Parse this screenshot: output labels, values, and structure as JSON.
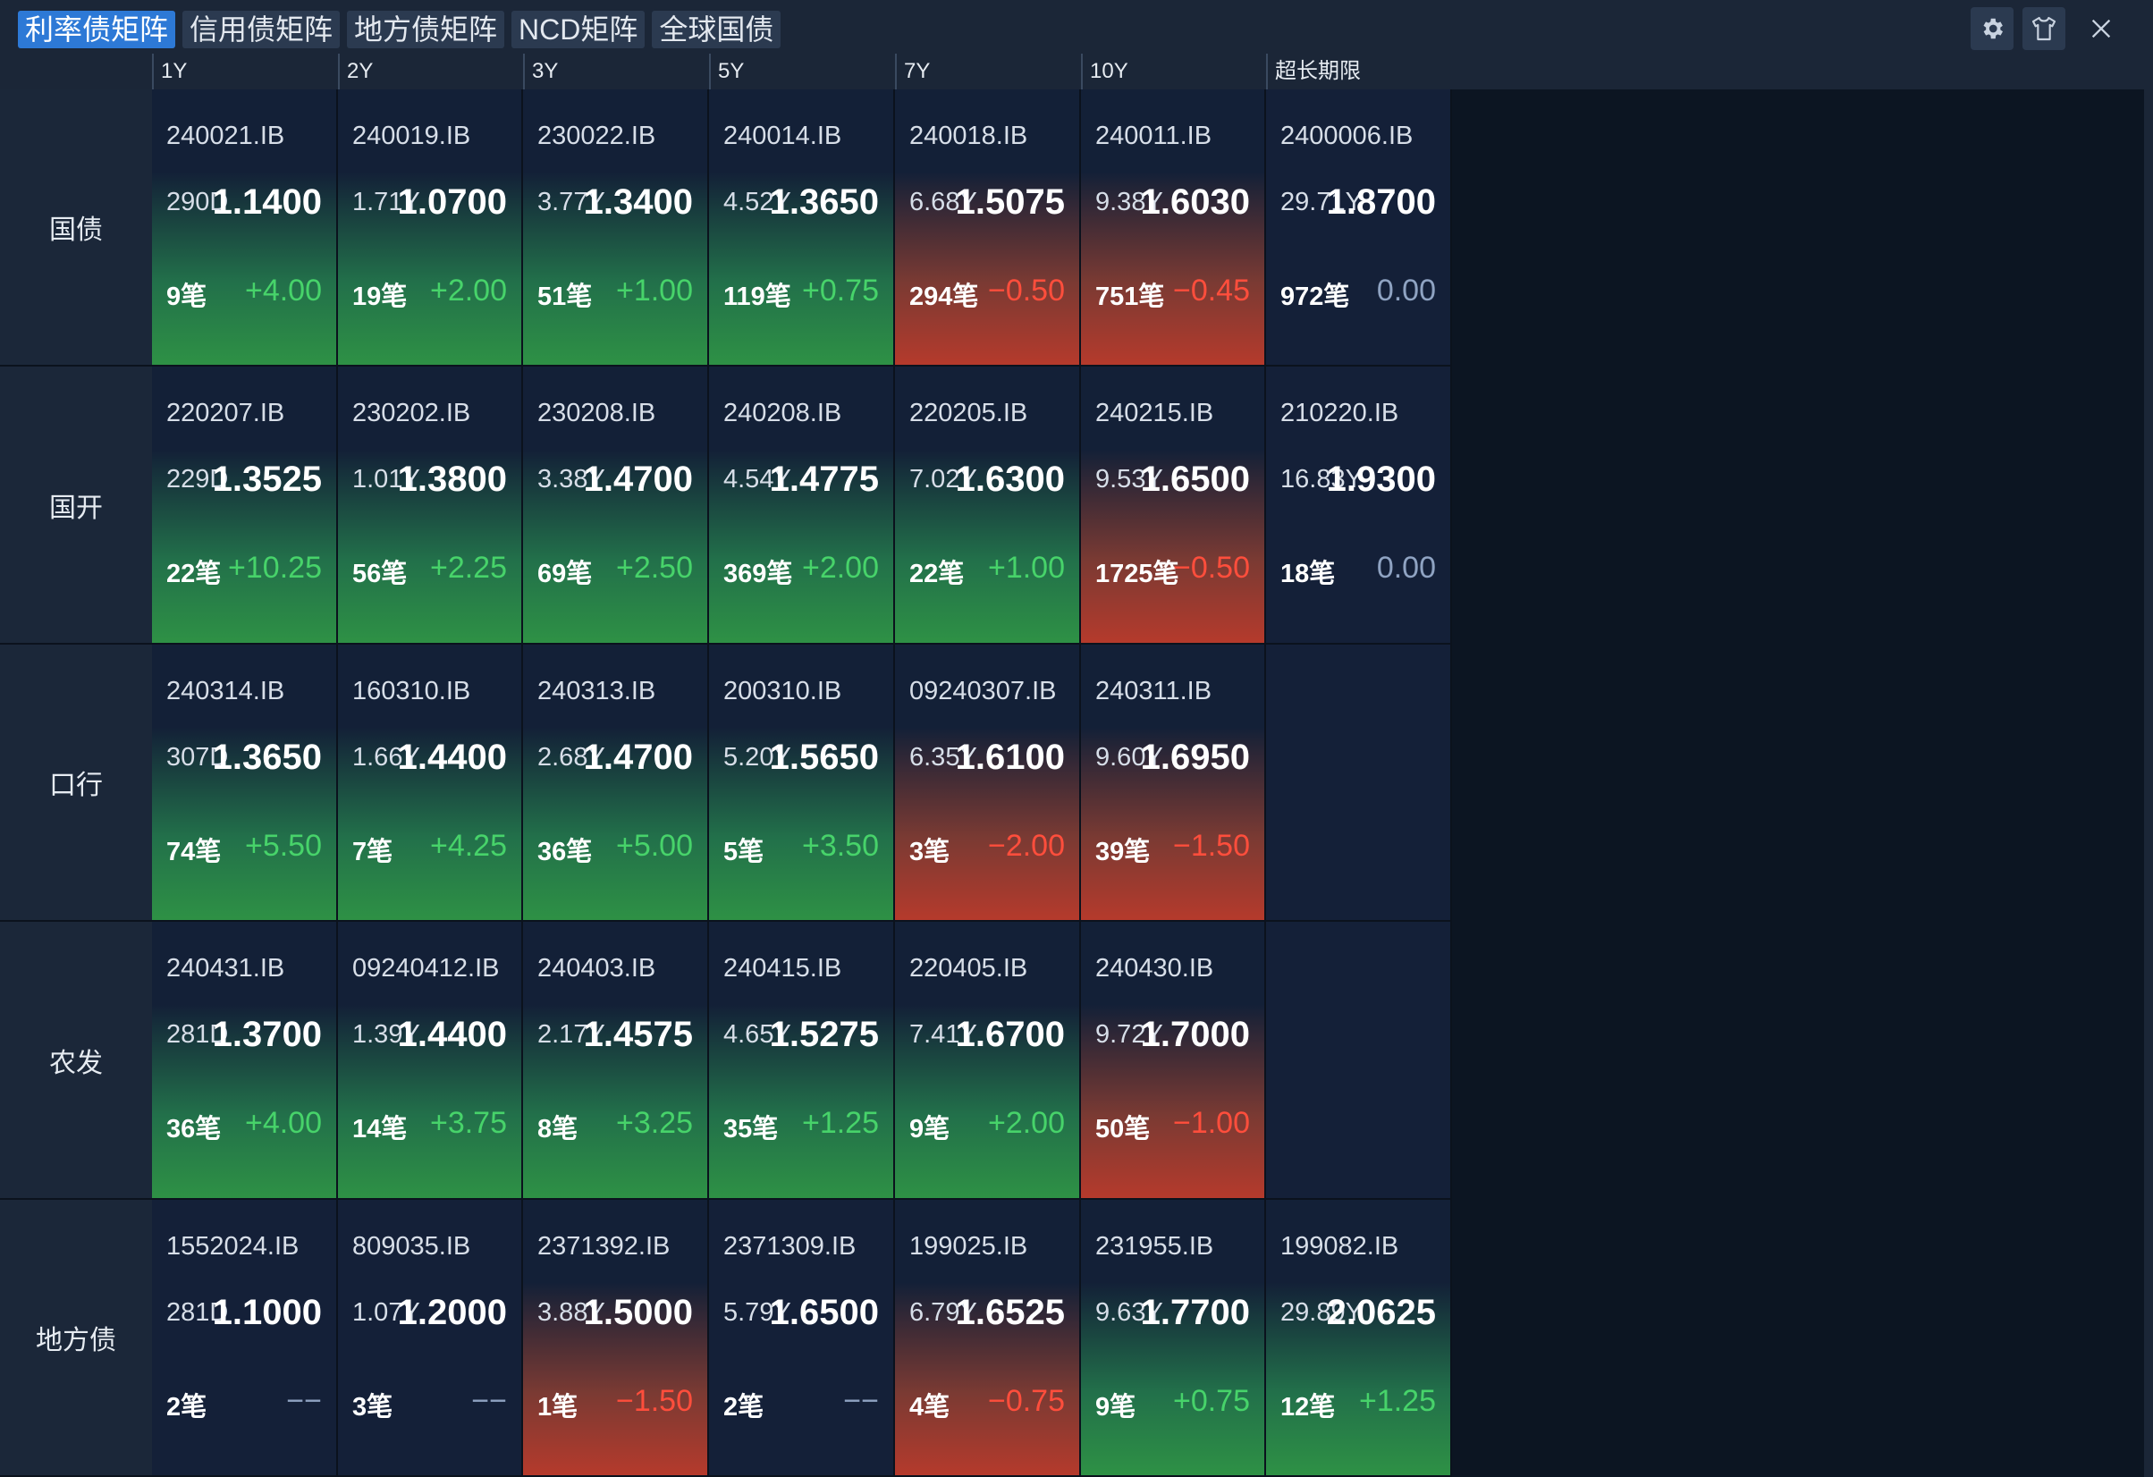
{
  "tabs": [
    {
      "label": "利率债矩阵",
      "active": true
    },
    {
      "label": "信用债矩阵",
      "active": false
    },
    {
      "label": "地方债矩阵",
      "active": false
    },
    {
      "label": "NCD矩阵",
      "active": false
    },
    {
      "label": "全球国债",
      "active": false
    }
  ],
  "controls": {
    "settings_icon": "gear-icon",
    "skin_icon": "shirt-icon",
    "close_icon": "close-icon"
  },
  "columns": [
    "1Y",
    "2Y",
    "3Y",
    "5Y",
    "7Y",
    "10Y",
    "超长期限"
  ],
  "colors": {
    "up": "#47d36a",
    "down": "#ff4e3c",
    "flat": "#8fa3c2",
    "active_tab": "#2d79d6"
  },
  "rows": [
    {
      "label": "国债",
      "cells": [
        {
          "code": "240021.IB",
          "term": "290D",
          "yield": "1.1400",
          "count": "9笔",
          "change": "+4.00",
          "trend": "up"
        },
        {
          "code": "240019.IB",
          "term": "1.71Y",
          "yield": "1.0700",
          "count": "19笔",
          "change": "+2.00",
          "trend": "up"
        },
        {
          "code": "230022.IB",
          "term": "3.77Y",
          "yield": "1.3400",
          "count": "51笔",
          "change": "+1.00",
          "trend": "up"
        },
        {
          "code": "240014.IB",
          "term": "4.52Y",
          "yield": "1.3650",
          "count": "119笔",
          "change": "+0.75",
          "trend": "up"
        },
        {
          "code": "240018.IB",
          "term": "6.68Y",
          "yield": "1.5075",
          "count": "294笔",
          "change": "−0.50",
          "trend": "down"
        },
        {
          "code": "240011.IB",
          "term": "9.38Y",
          "yield": "1.6030",
          "count": "751笔",
          "change": "−0.45",
          "trend": "down"
        },
        {
          "code": "2400006.IB",
          "term": "29.71Y",
          "yield": "1.8700",
          "count": "972笔",
          "change": "0.00",
          "trend": "flat"
        }
      ]
    },
    {
      "label": "国开",
      "cells": [
        {
          "code": "220207.IB",
          "term": "229D",
          "yield": "1.3525",
          "count": "22笔",
          "change": "+10.25",
          "trend": "up"
        },
        {
          "code": "230202.IB",
          "term": "1.01Y",
          "yield": "1.3800",
          "count": "56笔",
          "change": "+2.25",
          "trend": "up"
        },
        {
          "code": "230208.IB",
          "term": "3.38Y",
          "yield": "1.4700",
          "count": "69笔",
          "change": "+2.50",
          "trend": "up"
        },
        {
          "code": "240208.IB",
          "term": "4.54Y",
          "yield": "1.4775",
          "count": "369笔",
          "change": "+2.00",
          "trend": "up"
        },
        {
          "code": "220205.IB",
          "term": "7.02Y",
          "yield": "1.6300",
          "count": "22笔",
          "change": "+1.00",
          "trend": "up"
        },
        {
          "code": "240215.IB",
          "term": "9.53Y",
          "yield": "1.6500",
          "count": "1725笔",
          "change": "−0.50",
          "trend": "down"
        },
        {
          "code": "210220.IB",
          "term": "16.83Y",
          "yield": "1.9300",
          "count": "18笔",
          "change": "0.00",
          "trend": "flat"
        }
      ]
    },
    {
      "label": "口行",
      "cells": [
        {
          "code": "240314.IB",
          "term": "307D",
          "yield": "1.3650",
          "count": "74笔",
          "change": "+5.50",
          "trend": "up"
        },
        {
          "code": "160310.IB",
          "term": "1.66Y",
          "yield": "1.4400",
          "count": "7笔",
          "change": "+4.25",
          "trend": "up"
        },
        {
          "code": "240313.IB",
          "term": "2.68Y",
          "yield": "1.4700",
          "count": "36笔",
          "change": "+5.00",
          "trend": "up"
        },
        {
          "code": "200310.IB",
          "term": "5.20Y",
          "yield": "1.5650",
          "count": "5笔",
          "change": "+3.50",
          "trend": "up"
        },
        {
          "code": "09240307.IB",
          "term": "6.35Y",
          "yield": "1.6100",
          "count": "3笔",
          "change": "−2.00",
          "trend": "down"
        },
        {
          "code": "240311.IB",
          "term": "9.60Y",
          "yield": "1.6950",
          "count": "39笔",
          "change": "−1.50",
          "trend": "down"
        },
        null
      ]
    },
    {
      "label": "农发",
      "cells": [
        {
          "code": "240431.IB",
          "term": "281D",
          "yield": "1.3700",
          "count": "36笔",
          "change": "+4.00",
          "trend": "up"
        },
        {
          "code": "09240412.IB",
          "term": "1.39Y",
          "yield": "1.4400",
          "count": "14笔",
          "change": "+3.75",
          "trend": "up"
        },
        {
          "code": "240403.IB",
          "term": "2.17Y",
          "yield": "1.4575",
          "count": "8笔",
          "change": "+3.25",
          "trend": "up"
        },
        {
          "code": "240415.IB",
          "term": "4.65Y",
          "yield": "1.5275",
          "count": "35笔",
          "change": "+1.25",
          "trend": "up"
        },
        {
          "code": "220405.IB",
          "term": "7.41Y",
          "yield": "1.6700",
          "count": "9笔",
          "change": "+2.00",
          "trend": "up"
        },
        {
          "code": "240430.IB",
          "term": "9.72Y",
          "yield": "1.7000",
          "count": "50笔",
          "change": "−1.00",
          "trend": "down"
        },
        null
      ]
    },
    {
      "label": "地方债",
      "cells": [
        {
          "code": "1552024.IB",
          "term": "281D",
          "yield": "1.1000",
          "count": "2笔",
          "change": "−−",
          "trend": "none"
        },
        {
          "code": "809035.IB",
          "term": "1.07Y",
          "yield": "1.2000",
          "count": "3笔",
          "change": "−−",
          "trend": "none"
        },
        {
          "code": "2371392.IB",
          "term": "3.88Y",
          "yield": "1.5000",
          "count": "1笔",
          "change": "−1.50",
          "trend": "down"
        },
        {
          "code": "2371309.IB",
          "term": "5.79Y",
          "yield": "1.6500",
          "count": "2笔",
          "change": "−−",
          "trend": "none"
        },
        {
          "code": "199025.IB",
          "term": "6.79Y",
          "yield": "1.6525",
          "count": "4笔",
          "change": "−0.75",
          "trend": "down"
        },
        {
          "code": "231955.IB",
          "term": "9.63Y",
          "yield": "1.7700",
          "count": "9笔",
          "change": "+0.75",
          "trend": "up"
        },
        {
          "code": "199082.IB",
          "term": "29.89Y",
          "yield": "2.0625",
          "count": "12笔",
          "change": "+1.25",
          "trend": "up"
        }
      ]
    }
  ]
}
